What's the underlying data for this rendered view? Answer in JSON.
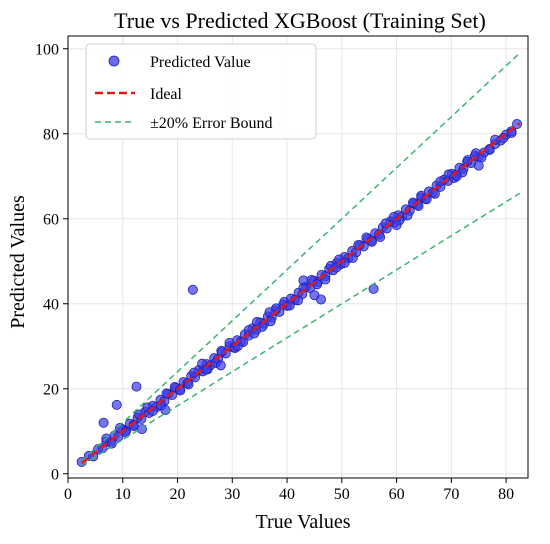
{
  "chart_data": {
    "type": "scatter",
    "title": "True vs Predicted XGBoost (Training Set)",
    "xlabel": "True Values",
    "ylabel": "Predicted Values",
    "xlim": [
      0,
      84
    ],
    "ylim": [
      -1,
      103
    ],
    "xticks": [
      0,
      10,
      20,
      30,
      40,
      50,
      60,
      70,
      80
    ],
    "yticks": [
      0,
      20,
      40,
      60,
      80,
      100
    ],
    "grid": true,
    "legend_position": "top-left",
    "series": [
      {
        "name": "Predicted Value",
        "kind": "scatter",
        "color": "#3b3bea",
        "x": [
          2.5,
          3.8,
          4.6,
          5.5,
          6.3,
          7.0,
          7.8,
          8.5,
          9.2,
          9.9,
          10.6,
          11.3,
          12.0,
          12.7,
          13.4,
          14.1,
          14.8,
          15.5,
          16.2,
          16.9,
          17.6,
          18.3,
          19.0,
          19.7,
          20.4,
          21.1,
          21.8,
          22.5,
          23.2,
          23.9,
          24.6,
          25.3,
          26.0,
          26.7,
          27.4,
          28.1,
          28.8,
          29.5,
          30.2,
          30.9,
          31.6,
          32.3,
          33.0,
          33.7,
          34.4,
          35.1,
          35.8,
          36.5,
          37.2,
          37.9,
          38.6,
          39.3,
          40.0,
          40.7,
          41.4,
          42.1,
          42.8,
          43.5,
          44.2,
          44.9,
          45.6,
          46.3,
          47.0,
          47.7,
          48.4,
          49.1,
          49.8,
          50.5,
          51.2,
          51.9,
          52.6,
          53.3,
          54.0,
          54.7,
          55.4,
          56.1,
          56.8,
          57.5,
          58.2,
          58.9,
          59.6,
          60.3,
          61.0,
          61.7,
          62.4,
          63.1,
          63.8,
          64.5,
          65.2,
          65.9,
          66.6,
          67.3,
          68.0,
          68.7,
          69.4,
          70.1,
          70.8,
          71.5,
          72.2,
          72.9,
          73.6,
          74.3,
          75.0,
          76.0,
          77.0,
          78.0,
          79.0,
          80.0,
          81.0,
          82.0,
          7.0,
          9.5,
          12.0,
          14.5,
          17.0,
          19.5,
          22.0,
          24.5,
          27.0,
          29.5,
          32.0,
          34.5,
          37.0,
          39.5,
          42.0,
          44.5,
          47.0,
          49.5,
          52.0,
          54.5,
          57.0,
          59.5,
          62.0,
          64.5,
          67.0,
          69.5,
          72.0,
          74.5,
          77.0,
          79.5,
          8.0,
          10.5,
          13.0,
          15.5,
          18.0,
          20.5,
          23.0,
          25.5,
          28.0,
          30.5,
          33.0,
          35.5,
          38.0,
          40.5,
          43.0,
          45.5,
          48.0,
          50.5,
          53.0,
          55.5,
          58.0,
          60.5,
          63.0,
          65.5,
          68.0,
          70.5,
          73.0,
          75.5,
          78.0,
          81.0,
          22.8,
          55.8,
          6.5,
          12.5,
          13.5,
          8.9,
          17.8,
          25.2,
          27.9,
          36.8,
          46.2,
          34.0,
          31.0,
          43.0,
          45.0,
          49.0,
          60.0,
          64.0,
          71.0,
          75.0
        ],
        "y": [
          2.8,
          4.2,
          4.1,
          5.8,
          6.0,
          7.6,
          7.4,
          9.0,
          8.7,
          10.5,
          10.1,
          11.8,
          11.5,
          13.2,
          12.9,
          14.6,
          14.3,
          16.0,
          15.7,
          17.4,
          17.1,
          18.8,
          18.5,
          20.2,
          19.9,
          21.6,
          21.3,
          23.0,
          22.7,
          24.4,
          24.1,
          25.8,
          25.5,
          27.2,
          26.9,
          28.6,
          28.3,
          30.0,
          29.7,
          31.4,
          31.1,
          32.8,
          32.5,
          34.2,
          33.9,
          35.6,
          35.3,
          37.0,
          36.7,
          38.4,
          38.1,
          39.8,
          39.5,
          41.2,
          40.9,
          42.6,
          42.3,
          44.0,
          43.7,
          45.4,
          45.1,
          46.8,
          46.5,
          48.2,
          47.9,
          49.6,
          49.3,
          51.0,
          50.7,
          52.4,
          52.1,
          53.8,
          53.5,
          55.2,
          54.9,
          56.6,
          56.3,
          58.0,
          57.7,
          59.4,
          59.1,
          60.8,
          60.5,
          62.2,
          61.9,
          63.6,
          63.3,
          65.0,
          64.7,
          66.4,
          66.1,
          67.8,
          67.5,
          69.2,
          68.9,
          70.6,
          70.3,
          72.0,
          71.7,
          73.4,
          73.1,
          74.8,
          74.6,
          75.6,
          76.4,
          77.6,
          78.4,
          79.8,
          80.6,
          82.3,
          8.3,
          10.8,
          11.2,
          15.6,
          16.1,
          20.4,
          21.0,
          25.9,
          26.1,
          30.8,
          31.0,
          35.7,
          35.9,
          40.4,
          40.8,
          45.6,
          45.7,
          50.4,
          50.8,
          55.6,
          55.7,
          60.4,
          60.8,
          65.4,
          65.9,
          70.4,
          70.9,
          75.4,
          76.2,
          79.0,
          7.1,
          9.7,
          13.9,
          14.8,
          18.9,
          19.6,
          23.8,
          24.6,
          28.9,
          29.6,
          33.8,
          34.6,
          38.9,
          39.6,
          43.8,
          44.6,
          48.9,
          49.6,
          53.8,
          54.6,
          58.9,
          59.6,
          63.8,
          64.6,
          68.8,
          69.6,
          73.8,
          74.4,
          78.6,
          80.2,
          43.3,
          43.5,
          12.0,
          20.5,
          10.5,
          16.2,
          15.0,
          24.5,
          25.5,
          38.0,
          41.0,
          33.0,
          30.0,
          45.5,
          42.0,
          48.5,
          58.5,
          63.0,
          70.0,
          72.5
        ]
      },
      {
        "name": "Ideal",
        "kind": "line",
        "color": "#e31a1c",
        "style": "dashed",
        "x": [
          2.5,
          82.5
        ],
        "y": [
          2.5,
          82.5
        ]
      },
      {
        "name": "±20% Error Bound",
        "kind": "line",
        "color": "#3cb371",
        "style": "dashed",
        "lines": [
          {
            "x": [
              2.5,
              82.5
            ],
            "y": [
              3.0,
              99.0
            ]
          },
          {
            "x": [
              2.5,
              82.5
            ],
            "y": [
              2.0,
              66.0
            ]
          }
        ]
      }
    ]
  }
}
